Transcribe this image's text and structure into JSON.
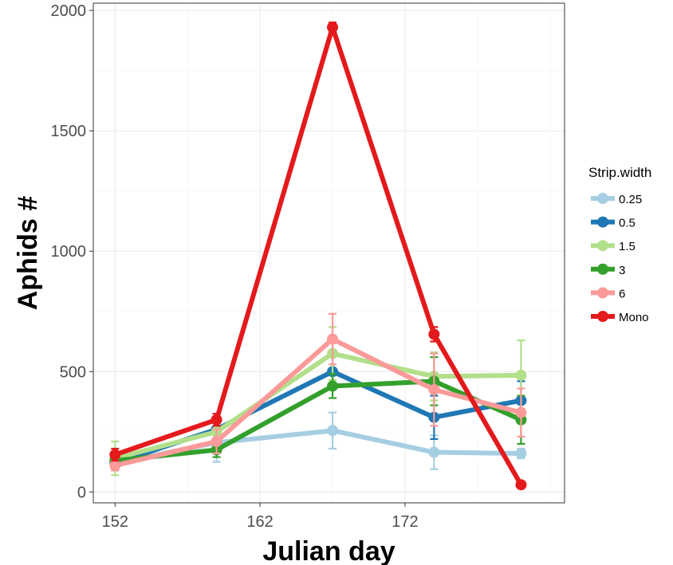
{
  "chart_data": {
    "type": "line",
    "title": "",
    "xlabel": "Julian day",
    "ylabel": "Aphids #",
    "x": [
      152,
      159,
      167,
      174,
      180
    ],
    "xticks": [
      152,
      162,
      172
    ],
    "yticks": [
      0,
      500,
      1000,
      1500,
      2000
    ],
    "xlim": [
      150.5,
      183
    ],
    "ylim": [
      -45,
      2030
    ],
    "grid": true,
    "legend": {
      "title": "Strip.width",
      "position": "right"
    },
    "series": [
      {
        "name": "0.25",
        "color": "#a6cee3",
        "values": [
          120,
          205,
          255,
          165,
          160
        ],
        "error": [
          20,
          80,
          75,
          70,
          20
        ]
      },
      {
        "name": "0.5",
        "color": "#1f78b4",
        "values": [
          120,
          260,
          500,
          310,
          380
        ],
        "error": [
          30,
          40,
          70,
          90,
          80
        ]
      },
      {
        "name": "1.5",
        "color": "#b2df8a",
        "values": [
          140,
          250,
          575,
          480,
          485
        ],
        "error": [
          70,
          60,
          110,
          100,
          145
        ]
      },
      {
        "name": "3",
        "color": "#33a02c",
        "values": [
          130,
          175,
          440,
          460,
          300
        ],
        "error": [
          30,
          30,
          50,
          100,
          100
        ]
      },
      {
        "name": "6",
        "color": "#fb9a99",
        "values": [
          110,
          210,
          635,
          425,
          330
        ],
        "error": [
          20,
          50,
          105,
          150,
          100
        ]
      },
      {
        "name": "Mono",
        "color": "#e31a1c",
        "values": [
          155,
          300,
          1930,
          655,
          30
        ],
        "error": [
          25,
          25,
          20,
          30,
          10
        ]
      }
    ]
  }
}
